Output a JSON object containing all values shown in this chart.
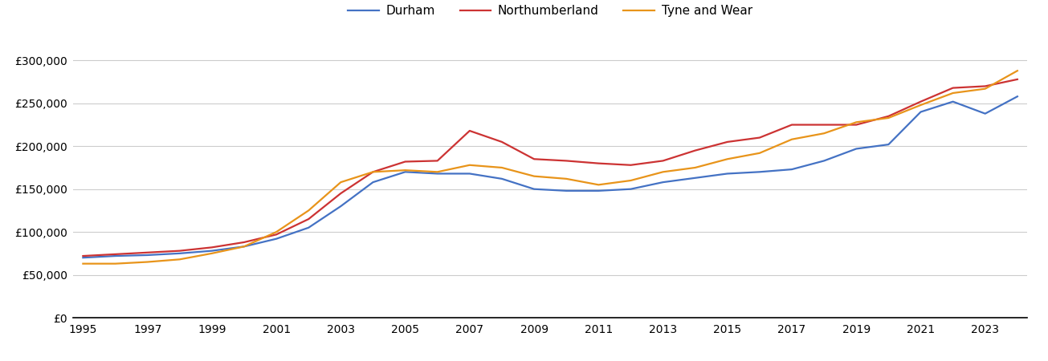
{
  "years": [
    1995,
    1996,
    1997,
    1998,
    1999,
    2000,
    2001,
    2002,
    2003,
    2004,
    2005,
    2006,
    2007,
    2008,
    2009,
    2010,
    2011,
    2012,
    2013,
    2014,
    2015,
    2016,
    2017,
    2018,
    2019,
    2020,
    2021,
    2022,
    2023,
    2024
  ],
  "durham": [
    70000,
    72000,
    73000,
    75000,
    78000,
    83000,
    92000,
    105000,
    130000,
    158000,
    170000,
    168000,
    168000,
    162000,
    150000,
    148000,
    148000,
    150000,
    158000,
    163000,
    168000,
    170000,
    173000,
    183000,
    197000,
    202000,
    240000,
    252000,
    238000,
    258000
  ],
  "northumberland": [
    72000,
    74000,
    76000,
    78000,
    82000,
    88000,
    97000,
    115000,
    145000,
    170000,
    182000,
    183000,
    218000,
    205000,
    185000,
    183000,
    180000,
    178000,
    183000,
    195000,
    205000,
    210000,
    225000,
    225000,
    225000,
    235000,
    252000,
    268000,
    270000,
    278000
  ],
  "tyne_and_wear": [
    63000,
    63000,
    65000,
    68000,
    75000,
    83000,
    100000,
    125000,
    158000,
    170000,
    172000,
    170000,
    178000,
    175000,
    165000,
    162000,
    155000,
    160000,
    170000,
    175000,
    185000,
    192000,
    208000,
    215000,
    228000,
    233000,
    248000,
    262000,
    267000,
    288000
  ],
  "series_colors": [
    "#4472c4",
    "#cc3333",
    "#e8941a"
  ],
  "series_labels": [
    "Durham",
    "Northumberland",
    "Tyne and Wear"
  ],
  "ylim": [
    0,
    320000
  ],
  "yticks": [
    0,
    50000,
    100000,
    150000,
    200000,
    250000,
    300000
  ],
  "background_color": "#ffffff",
  "grid_color": "#cccccc",
  "line_width": 1.6
}
